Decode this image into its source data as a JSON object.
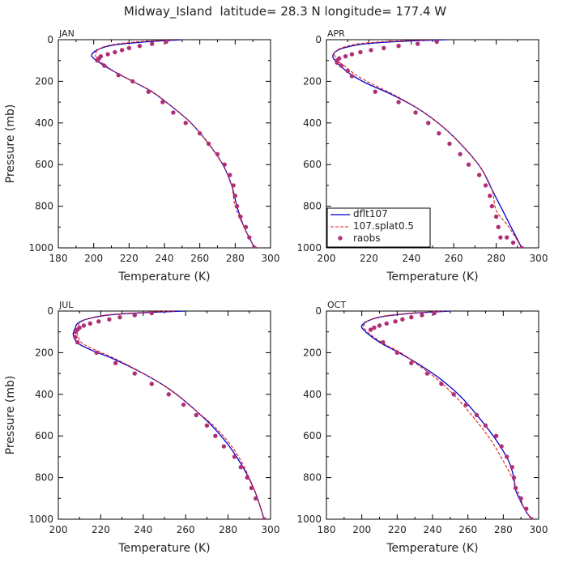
{
  "title": "Midway_Island  latitude= 28.3 N longitude= 177.4 W",
  "colors": {
    "dflt": "#0000cc",
    "splat": "#e02020",
    "raobs": "#b03078"
  },
  "legend": {
    "panel": "APR",
    "entries": [
      "dflt107",
      "107.splat0.5",
      "raobs"
    ]
  },
  "chart_data": [
    {
      "type": "line",
      "panel_label": "JAN",
      "xlabel": "Temperature (K)",
      "ylabel": "Pressure (mb)",
      "xlim": [
        180,
        300
      ],
      "ylim": [
        1000,
        0
      ],
      "xticks": [
        180,
        200,
        220,
        240,
        260,
        280,
        300
      ],
      "yticks": [
        0,
        200,
        400,
        600,
        800,
        1000
      ],
      "series": [
        {
          "name": "dflt107",
          "style": "solid",
          "x": [
            250,
            230,
            212,
            203,
            199,
            200,
            205,
            213,
            222,
            233,
            244,
            255,
            265,
            273,
            278,
            281,
            285,
            291
          ],
          "y": [
            0,
            10,
            25,
            45,
            70,
            90,
            120,
            160,
            200,
            250,
            320,
            400,
            500,
            600,
            700,
            800,
            900,
            1000
          ]
        },
        {
          "name": "107.splat0.5",
          "style": "dashed",
          "x": [
            245,
            225,
            210,
            203,
            201,
            202,
            206,
            213,
            222,
            233,
            244,
            255,
            265,
            273,
            278,
            280,
            285,
            291
          ],
          "y": [
            0,
            10,
            25,
            45,
            70,
            90,
            120,
            160,
            200,
            250,
            320,
            400,
            500,
            600,
            700,
            800,
            900,
            1000
          ]
        },
        {
          "name": "raobs",
          "style": "points",
          "x": [
            241,
            233,
            226,
            220,
            216,
            212,
            208,
            204,
            203,
            202,
            206,
            214,
            222,
            231,
            239,
            245,
            252,
            260,
            265,
            270,
            274,
            277,
            279,
            280,
            281,
            283,
            286,
            288,
            291
          ],
          "y": [
            10,
            20,
            30,
            40,
            50,
            60,
            70,
            80,
            90,
            100,
            125,
            170,
            200,
            250,
            300,
            350,
            400,
            450,
            500,
            550,
            600,
            650,
            700,
            750,
            800,
            850,
            900,
            950,
            1000
          ]
        }
      ]
    },
    {
      "type": "line",
      "panel_label": "APR",
      "xlabel": "Temperature (K)",
      "ylabel": "",
      "xlim": [
        200,
        300
      ],
      "ylim": [
        1000,
        0
      ],
      "xticks": [
        200,
        220,
        240,
        260,
        280,
        300
      ],
      "yticks": [
        0,
        200,
        400,
        600,
        800,
        1000
      ],
      "series": [
        {
          "name": "dflt107",
          "style": "solid",
          "x": [
            257,
            235,
            218,
            208,
            204,
            203,
            204,
            207,
            212,
            219,
            230,
            243,
            255,
            265,
            273,
            278,
            283,
            287,
            292
          ],
          "y": [
            0,
            8,
            20,
            40,
            60,
            80,
            100,
            130,
            170,
            210,
            260,
            330,
            420,
            520,
            620,
            720,
            820,
            900,
            1000
          ]
        },
        {
          "name": "107.splat0.5",
          "style": "dashed",
          "x": [
            250,
            230,
            215,
            207,
            204,
            204,
            205,
            209,
            214,
            221,
            231,
            243,
            255,
            265,
            273,
            278,
            280,
            286,
            292
          ],
          "y": [
            0,
            8,
            20,
            40,
            60,
            80,
            100,
            130,
            170,
            210,
            260,
            330,
            420,
            520,
            620,
            720,
            820,
            900,
            1000
          ]
        },
        {
          "name": "raobs",
          "style": "points",
          "x": [
            252,
            243,
            234,
            227,
            221,
            216,
            212,
            209,
            206,
            205,
            205,
            207,
            210,
            212,
            223,
            234,
            242,
            248,
            253,
            258,
            263,
            267,
            272,
            275,
            277,
            278,
            280,
            281,
            282,
            285,
            288,
            292
          ],
          "y": [
            10,
            20,
            30,
            40,
            50,
            60,
            70,
            80,
            90,
            100,
            110,
            125,
            150,
            175,
            250,
            300,
            350,
            400,
            450,
            500,
            550,
            600,
            650,
            700,
            750,
            800,
            850,
            900,
            950,
            950,
            975,
            1000
          ]
        }
      ]
    },
    {
      "type": "line",
      "panel_label": "JUL",
      "xlabel": "Temperature (K)",
      "ylabel": "Pressure (mb)",
      "xlim": [
        200,
        300
      ],
      "ylim": [
        1000,
        0
      ],
      "xticks": [
        200,
        220,
        240,
        260,
        280,
        300
      ],
      "yticks": [
        0,
        200,
        400,
        600,
        800,
        1000
      ],
      "series": [
        {
          "name": "dflt107",
          "style": "solid",
          "x": [
            260,
            240,
            223,
            213,
            209,
            208,
            207,
            208,
            210,
            216,
            226,
            240,
            253,
            265,
            275,
            284,
            292,
            297
          ],
          "y": [
            0,
            8,
            20,
            40,
            60,
            80,
            110,
            140,
            160,
            190,
            230,
            300,
            380,
            480,
            580,
            700,
            850,
            1000
          ]
        },
        {
          "name": "107.splat0.5",
          "style": "dashed",
          "x": [
            255,
            237,
            222,
            213,
            210,
            209,
            209,
            210,
            212,
            218,
            227,
            240,
            253,
            265,
            276,
            285,
            292,
            297
          ],
          "y": [
            0,
            8,
            20,
            40,
            60,
            80,
            110,
            140,
            160,
            190,
            230,
            300,
            380,
            480,
            580,
            700,
            850,
            1000
          ]
        },
        {
          "name": "raobs",
          "style": "points",
          "x": [
            244,
            236,
            229,
            224,
            219,
            215,
            212,
            210,
            209,
            208,
            208,
            209,
            218,
            227,
            236,
            244,
            252,
            259,
            265,
            270,
            274,
            278,
            283,
            286,
            289,
            291,
            293,
            297
          ],
          "y": [
            10,
            20,
            30,
            40,
            50,
            60,
            70,
            80,
            90,
            100,
            125,
            150,
            200,
            250,
            300,
            350,
            400,
            450,
            500,
            550,
            600,
            650,
            700,
            750,
            800,
            850,
            900,
            1000
          ]
        }
      ]
    },
    {
      "type": "line",
      "panel_label": "OCT",
      "xlabel": "Temperature (K)",
      "ylabel": "",
      "xlim": [
        180,
        300
      ],
      "ylim": [
        1000,
        0
      ],
      "xticks": [
        180,
        200,
        220,
        240,
        260,
        280,
        300
      ],
      "yticks": [
        0,
        200,
        400,
        600,
        800,
        1000
      ],
      "series": [
        {
          "name": "dflt107",
          "style": "solid",
          "x": [
            250,
            230,
            213,
            204,
            200,
            201,
            205,
            212,
            221,
            233,
            245,
            257,
            267,
            276,
            283,
            286,
            287,
            292,
            296
          ],
          "y": [
            0,
            10,
            25,
            45,
            70,
            90,
            120,
            160,
            200,
            260,
            330,
            420,
            520,
            620,
            720,
            800,
            860,
            950,
            1000
          ]
        },
        {
          "name": "107.splat0.5",
          "style": "dashed",
          "x": [
            247,
            228,
            212,
            204,
            201,
            202,
            206,
            213,
            222,
            232,
            243,
            254,
            264,
            273,
            280,
            285,
            288,
            292,
            296
          ],
          "y": [
            0,
            10,
            25,
            45,
            70,
            90,
            120,
            160,
            200,
            260,
            330,
            420,
            520,
            620,
            720,
            800,
            860,
            950,
            1000
          ]
        },
        {
          "name": "raobs",
          "style": "points",
          "x": [
            241,
            234,
            228,
            223,
            219,
            214,
            210,
            207,
            205,
            212,
            220,
            228,
            237,
            245,
            252,
            259,
            265,
            270,
            276,
            279,
            282,
            285,
            286,
            287,
            290,
            293,
            296
          ],
          "y": [
            10,
            20,
            30,
            40,
            50,
            60,
            70,
            80,
            90,
            150,
            200,
            250,
            300,
            350,
            400,
            450,
            500,
            550,
            600,
            650,
            700,
            750,
            800,
            850,
            900,
            950,
            1000
          ]
        }
      ]
    }
  ]
}
